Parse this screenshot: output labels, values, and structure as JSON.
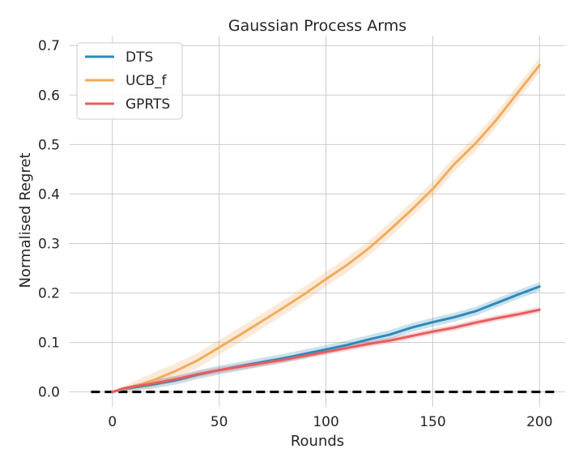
{
  "chart_data": {
    "type": "line",
    "title": "Gaussian Process Arms",
    "xlabel": "Rounds",
    "ylabel": "Normalised Regret",
    "xlim": [
      -20,
      212
    ],
    "ylim": [
      -0.03,
      0.72
    ],
    "xticks": [
      0,
      50,
      100,
      150,
      200
    ],
    "yticks": [
      0.0,
      0.1,
      0.2,
      0.3,
      0.4,
      0.5,
      0.6,
      0.7
    ],
    "xtick_labels": [
      "0",
      "50",
      "100",
      "150",
      "200"
    ],
    "ytick_labels": [
      "0.0",
      "0.1",
      "0.2",
      "0.3",
      "0.4",
      "0.5",
      "0.6",
      "0.7"
    ],
    "grid": true,
    "legend_position": "top-left",
    "baseline": {
      "y": 0.0,
      "x_range": [
        -10,
        209
      ],
      "style": "dashed",
      "color": "#000000"
    },
    "series": [
      {
        "name": "DTS",
        "color": "#2e8ab8",
        "x": [
          0,
          5,
          10,
          20,
          30,
          40,
          50,
          60,
          70,
          80,
          90,
          100,
          110,
          120,
          130,
          140,
          150,
          160,
          170,
          180,
          190,
          200
        ],
        "y": [
          0.0,
          0.005,
          0.009,
          0.016,
          0.024,
          0.035,
          0.044,
          0.052,
          0.06,
          0.068,
          0.077,
          0.086,
          0.095,
          0.106,
          0.116,
          0.13,
          0.141,
          0.151,
          0.163,
          0.18,
          0.197,
          0.213
        ],
        "band": 0.009
      },
      {
        "name": "UCB_f",
        "color": "#f0ac60",
        "x": [
          0,
          5,
          10,
          20,
          30,
          40,
          50,
          60,
          70,
          80,
          90,
          100,
          110,
          120,
          130,
          140,
          150,
          160,
          170,
          180,
          190,
          200
        ],
        "y": [
          0.0,
          0.006,
          0.011,
          0.025,
          0.043,
          0.064,
          0.09,
          0.116,
          0.143,
          0.17,
          0.198,
          0.228,
          0.257,
          0.29,
          0.328,
          0.368,
          0.41,
          0.46,
          0.502,
          0.551,
          0.606,
          0.66
        ],
        "band": 0.015
      },
      {
        "name": "GPRTS",
        "color": "#e85d5d",
        "x": [
          0,
          5,
          10,
          20,
          30,
          40,
          50,
          60,
          70,
          80,
          90,
          100,
          110,
          120,
          130,
          140,
          150,
          160,
          170,
          180,
          190,
          200
        ],
        "y": [
          0.0,
          0.007,
          0.011,
          0.018,
          0.026,
          0.036,
          0.044,
          0.051,
          0.058,
          0.065,
          0.073,
          0.081,
          0.089,
          0.097,
          0.104,
          0.113,
          0.122,
          0.13,
          0.14,
          0.149,
          0.157,
          0.166
        ],
        "band": 0.006
      }
    ]
  }
}
